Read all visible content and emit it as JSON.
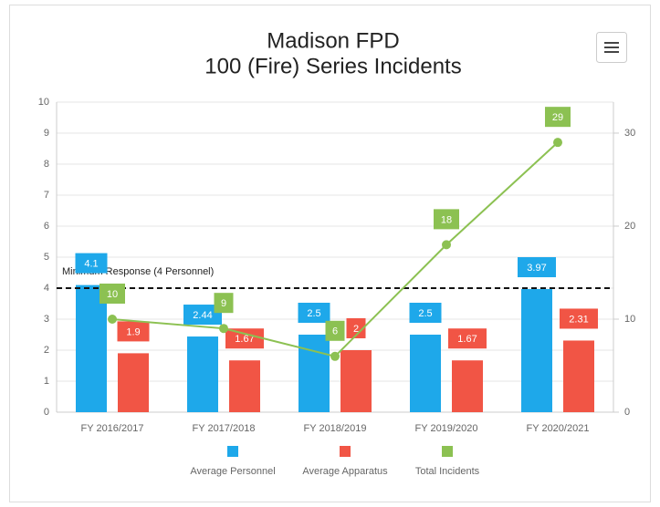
{
  "chart_data": {
    "type": "bar",
    "title": "Madison FPD",
    "subtitle": "100 (Fire) Series Incidents",
    "categories": [
      "FY 2016/2017",
      "FY 2017/2018",
      "FY 2018/2019",
      "FY 2019/2020",
      "FY 2020/2021"
    ],
    "series": [
      {
        "name": "Average Personnel",
        "color": "#1ea8ea",
        "type": "bar",
        "values": [
          4.1,
          2.44,
          2.5,
          2.5,
          3.97
        ]
      },
      {
        "name": "Average Apparatus",
        "color": "#f15545",
        "type": "bar",
        "values": [
          1.9,
          1.67,
          2,
          1.67,
          2.31
        ]
      },
      {
        "name": "Total Incidents",
        "color": "#8cc152",
        "type": "line",
        "axis": "y2",
        "values": [
          10,
          9,
          6,
          18,
          29
        ]
      }
    ],
    "ylim": [
      0,
      10
    ],
    "yticks": [
      0,
      1,
      2,
      3,
      4,
      5,
      6,
      7,
      8,
      9,
      10
    ],
    "y2lim": [
      0,
      33.33
    ],
    "y2ticks": [
      0,
      10,
      20,
      30
    ],
    "threshold": 4,
    "annotation": "Minimum Response (4 Personnel)",
    "grid": true,
    "legend": "bottom"
  }
}
